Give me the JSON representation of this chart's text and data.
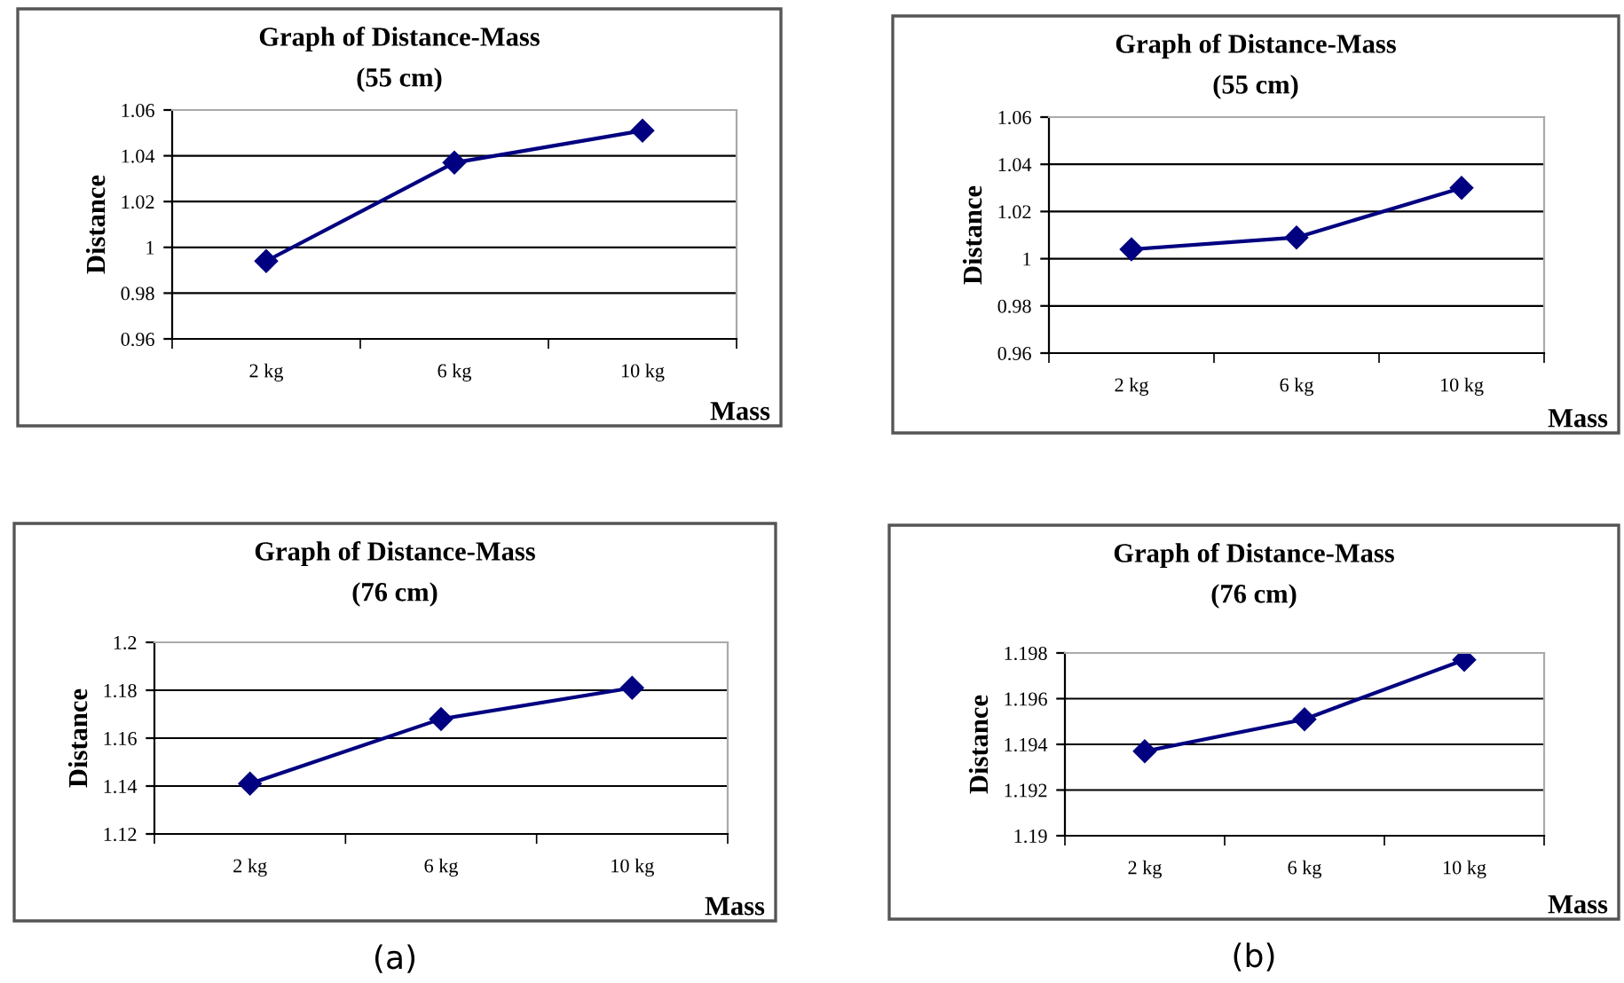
{
  "chart_data": [
    {
      "type": "line",
      "title": "Graph of Distance-Mass",
      "subtitle": "(55 cm)",
      "xlabel": "Mass",
      "ylabel": "Distance",
      "categories": [
        "2 kg",
        "6 kg",
        "10 kg"
      ],
      "series": [
        {
          "color": "#000080",
          "values": [
            0.994,
            1.037,
            1.051
          ]
        }
      ],
      "ylim": [
        0.96,
        1.06
      ],
      "yticks": [
        0.96,
        0.98,
        1,
        1.02,
        1.04,
        1.06
      ],
      "grid": "y",
      "marker": "diamond",
      "line_style": "solid"
    },
    {
      "type": "line",
      "title": "Graph of Distance-Mass",
      "subtitle": "(55 cm)",
      "xlabel": "Mass",
      "ylabel": "Distance",
      "categories": [
        "2 kg",
        "6 kg",
        "10 kg"
      ],
      "series": [
        {
          "color": "#000080",
          "values": [
            1.004,
            1.009,
            1.03
          ]
        }
      ],
      "ylim": [
        0.96,
        1.06
      ],
      "yticks": [
        0.96,
        0.98,
        1,
        1.02,
        1.04,
        1.06
      ],
      "grid": "y",
      "marker": "diamond",
      "line_style": "solid"
    },
    {
      "type": "line",
      "title": "Graph of Distance-Mass",
      "subtitle": "(76 cm)",
      "xlabel": "Mass",
      "ylabel": "Distance",
      "categories": [
        "2 kg",
        "6 kg",
        "10 kg"
      ],
      "series": [
        {
          "color": "#000080",
          "values": [
            1.141,
            1.168,
            1.181
          ]
        }
      ],
      "ylim": [
        1.12,
        1.2
      ],
      "yticks": [
        1.12,
        1.14,
        1.16,
        1.18,
        1.2
      ],
      "grid": "y",
      "marker": "diamond",
      "line_style": "solid",
      "annotations": [
        "(a)"
      ]
    },
    {
      "type": "line",
      "title": "Graph of Distance-Mass",
      "subtitle": "(76 cm)",
      "xlabel": "Mass",
      "ylabel": "Distance",
      "categories": [
        "2 kg",
        "6 kg",
        "10 kg"
      ],
      "series": [
        {
          "color": "#000080",
          "values": [
            1.1937,
            1.1951,
            1.1977
          ]
        }
      ],
      "ylim": [
        1.19,
        1.198
      ],
      "yticks": [
        1.19,
        1.192,
        1.194,
        1.196,
        1.198
      ],
      "grid": "y",
      "marker": "diamond",
      "line_style": "solid",
      "annotations": [
        "(b)"
      ]
    }
  ]
}
